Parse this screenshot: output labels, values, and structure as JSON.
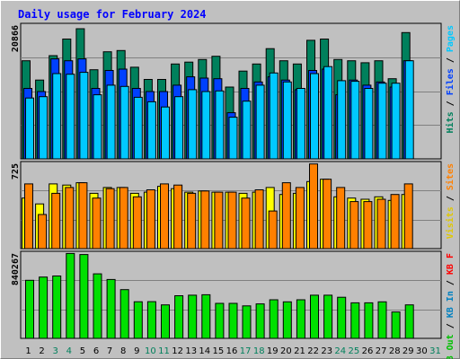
{
  "title": "Daily usage for February 2024",
  "colors": {
    "background": "#c0c0c0",
    "title": "#0000ff",
    "hits": "#00805c",
    "files": "#0040ff",
    "pages": "#00c8ff",
    "visits": "#ffff00",
    "sites": "#ff8000",
    "kb_in": "#0080c0",
    "kb_out": "#00e000",
    "kb_f": "#ff0000",
    "weekend": "#00805c",
    "weekday": "#000000"
  },
  "labels": {
    "hits": "Hits",
    "files": "Files",
    "pages": "Pages",
    "visits": "Visits",
    "sites": "Sites",
    "kb_out": "KB Out",
    "kb_in": "KB In",
    "kb_f": "KB F",
    "sep": "/"
  },
  "chart_data": {
    "type": "bar",
    "title": "Daily usage for February 2024",
    "days": [
      1,
      2,
      3,
      4,
      5,
      6,
      7,
      8,
      9,
      10,
      11,
      12,
      13,
      14,
      15,
      16,
      17,
      18,
      19,
      20,
      21,
      22,
      23,
      24,
      25,
      26,
      27,
      28,
      29,
      30,
      31
    ],
    "weekend_days": [
      3,
      4,
      10,
      11,
      17,
      18,
      24,
      25,
      31
    ],
    "panels": [
      {
        "name": "hits-files-pages",
        "ymax_label": "20866",
        "ymax": 20866,
        "series": [
          {
            "name": "Hits",
            "values": [
              15300,
              12300,
              16100,
              18700,
              20300,
              13900,
              16700,
              16900,
              14300,
              12400,
              12400,
              14800,
              15100,
              15500,
              16000,
              11200,
              13700,
              14800,
              17200,
              15300,
              14800,
              18500,
              18700,
              15500,
              15300,
              15000,
              15300,
              12500,
              19700,
              0,
              0
            ]
          },
          {
            "name": "Files",
            "values": [
              11000,
              10500,
              15600,
              15300,
              15600,
              11000,
              13800,
              14000,
              11000,
              10500,
              10500,
              11500,
              12800,
              12600,
              12500,
              7200,
              11000,
              12000,
              12800,
              12300,
              10800,
              13800,
              14000,
              10000,
              12300,
              11500,
              12000,
              11200,
              15300,
              0,
              0
            ]
          },
          {
            "name": "Pages",
            "values": [
              9500,
              9700,
              13300,
              13200,
              13500,
              10000,
              11500,
              11300,
              9600,
              8900,
              8100,
              9700,
              10800,
              10500,
              10600,
              6500,
              9000,
              11500,
              13400,
              12000,
              11000,
              13300,
              14400,
              12200,
              12100,
              11000,
              11800,
              11800,
              15300,
              0,
              0
            ]
          }
        ]
      },
      {
        "name": "visits-sites",
        "ymax_label": "725",
        "ymax": 725,
        "series": [
          {
            "name": "Visits",
            "values": [
              430,
              380,
              550,
              540,
              560,
              470,
              520,
              520,
              470,
              480,
              530,
              510,
              480,
              490,
              480,
              480,
              470,
              480,
              520,
              460,
              470,
              570,
              590,
              440,
              430,
              420,
              440,
              410,
              460,
              0,
              0
            ]
          },
          {
            "name": "Sites",
            "values": [
              550,
              290,
              470,
              520,
              560,
              430,
              510,
              520,
              440,
              500,
              550,
              540,
              470,
              490,
              480,
              480,
              430,
              500,
              320,
              560,
              520,
              720,
              590,
              520,
              400,
              400,
              420,
              460,
              550,
              0,
              0
            ]
          }
        ]
      },
      {
        "name": "kb",
        "ymax_label": "840267",
        "ymax": 840267,
        "series": [
          {
            "name": "KB F",
            "values": [
              0,
              0,
              0,
              0,
              0,
              0,
              0,
              0,
              0,
              0,
              0,
              0,
              0,
              0,
              0,
              0,
              0,
              0,
              0,
              0,
              0,
              0,
              0,
              0,
              0,
              0,
              0,
              0,
              0,
              0,
              0
            ]
          },
          {
            "name": "KB In",
            "values": [
              0,
              0,
              0,
              0,
              0,
              0,
              0,
              0,
              0,
              0,
              0,
              0,
              0,
              0,
              0,
              0,
              0,
              0,
              0,
              0,
              0,
              0,
              0,
              0,
              0,
              0,
              0,
              0,
              0,
              0,
              0
            ]
          },
          {
            "name": "KB Out",
            "values": [
              572000,
              604000,
              615000,
              837000,
              826000,
              636000,
              580000,
              480000,
              361000,
              362000,
              330000,
              420000,
              425000,
              430000,
              345000,
              345000,
              320000,
              340000,
              380000,
              360000,
              380000,
              425000,
              425000,
              405000,
              350000,
              350000,
              360000,
              260000,
              330000,
              0,
              0
            ]
          }
        ]
      }
    ]
  }
}
